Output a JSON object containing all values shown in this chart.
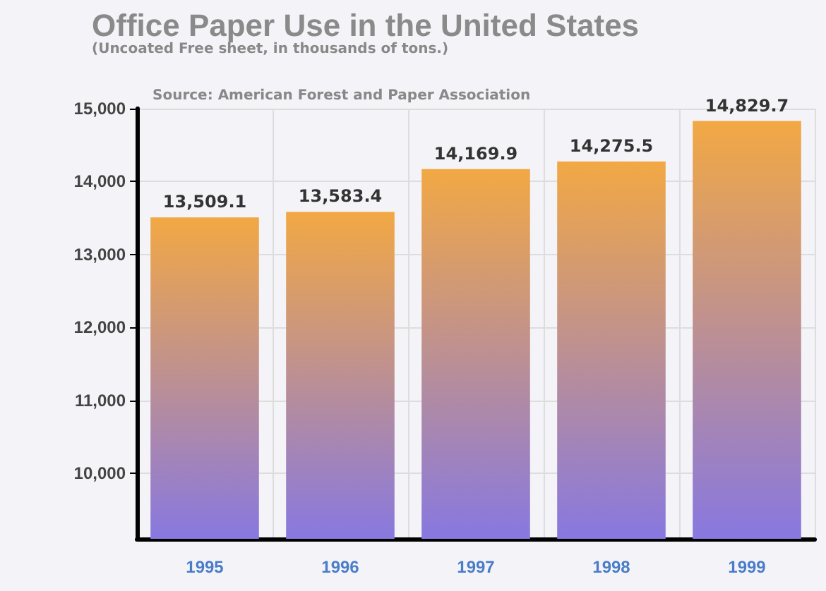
{
  "chart_data": {
    "type": "bar",
    "title": "Office Paper Use in the United States",
    "subtitle": "(Uncoated Free sheet, in thousands of tons.)",
    "annotations": [
      "Source: American Forest and Paper Association"
    ],
    "categories": [
      "1995",
      "1996",
      "1997",
      "1998",
      "1999"
    ],
    "values": [
      13509.1,
      13583.4,
      14169.9,
      14275.5,
      14829.7
    ],
    "value_labels": [
      "13,509.1",
      "13,583.4",
      "14,169.9",
      "14,275.5",
      "14,829.7"
    ],
    "color": "#f2a844",
    "ylim": [
      9100,
      15000
    ],
    "yticks": [
      {
        "value": 10000,
        "label": "10,000"
      },
      {
        "value": 11000,
        "label": "11,000"
      },
      {
        "value": 12000,
        "label": "12,000"
      },
      {
        "value": 13000,
        "label": "13,000"
      },
      {
        "value": 14000,
        "label": "14,000"
      },
      {
        "value": 15000,
        "label": "15,000"
      }
    ],
    "grid": true
  }
}
